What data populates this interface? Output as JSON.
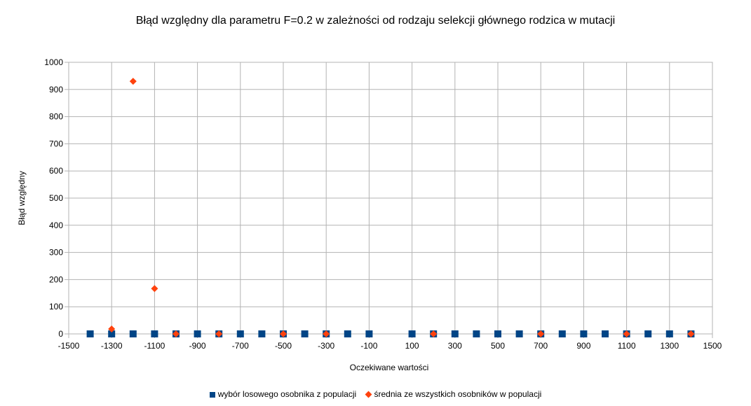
{
  "chart_data": {
    "type": "scatter",
    "title": "Błąd względny dla parametru F=0.2 w zależności od rodzaju selekcji głównego rodzica w mutacji",
    "xlabel": "Oczekiwane wartości",
    "ylabel": "Błąd względny",
    "xlim": [
      -1500,
      1500
    ],
    "ylim": [
      0,
      1000
    ],
    "xticks": [
      -1500,
      -1300,
      -1100,
      -900,
      -700,
      -500,
      -300,
      -100,
      100,
      300,
      500,
      700,
      900,
      1100,
      1300,
      1500
    ],
    "yticks": [
      0,
      100,
      200,
      300,
      400,
      500,
      600,
      700,
      800,
      900,
      1000
    ],
    "grid": true,
    "legend_position": "bottom",
    "series": [
      {
        "name": "wybór losowego osobnika z populacji",
        "color": "#004586",
        "marker": "square",
        "points": [
          [
            -1400,
            0
          ],
          [
            -1300,
            0
          ],
          [
            -1200,
            0
          ],
          [
            -1100,
            0
          ],
          [
            -1000,
            0
          ],
          [
            -900,
            0
          ],
          [
            -800,
            0
          ],
          [
            -700,
            0
          ],
          [
            -600,
            0
          ],
          [
            -500,
            0
          ],
          [
            -400,
            0
          ],
          [
            -300,
            0
          ],
          [
            -200,
            0
          ],
          [
            -100,
            0
          ],
          [
            100,
            0
          ],
          [
            200,
            0
          ],
          [
            300,
            0
          ],
          [
            400,
            0
          ],
          [
            500,
            0
          ],
          [
            600,
            0
          ],
          [
            700,
            0
          ],
          [
            800,
            0
          ],
          [
            900,
            0
          ],
          [
            1000,
            0
          ],
          [
            1100,
            0
          ],
          [
            1200,
            0
          ],
          [
            1300,
            0
          ],
          [
            1400,
            0
          ]
        ]
      },
      {
        "name": "średnia ze wszystkich osobników w populacji",
        "color": "#ff420e",
        "marker": "diamond",
        "points": [
          [
            -1300,
            18
          ],
          [
            -1200,
            930
          ],
          [
            -1100,
            167
          ],
          [
            -1000,
            0
          ],
          [
            -800,
            0
          ],
          [
            -500,
            0
          ],
          [
            -300,
            0
          ],
          [
            200,
            0
          ],
          [
            700,
            0
          ],
          [
            1100,
            0
          ],
          [
            1400,
            0
          ]
        ]
      }
    ]
  }
}
